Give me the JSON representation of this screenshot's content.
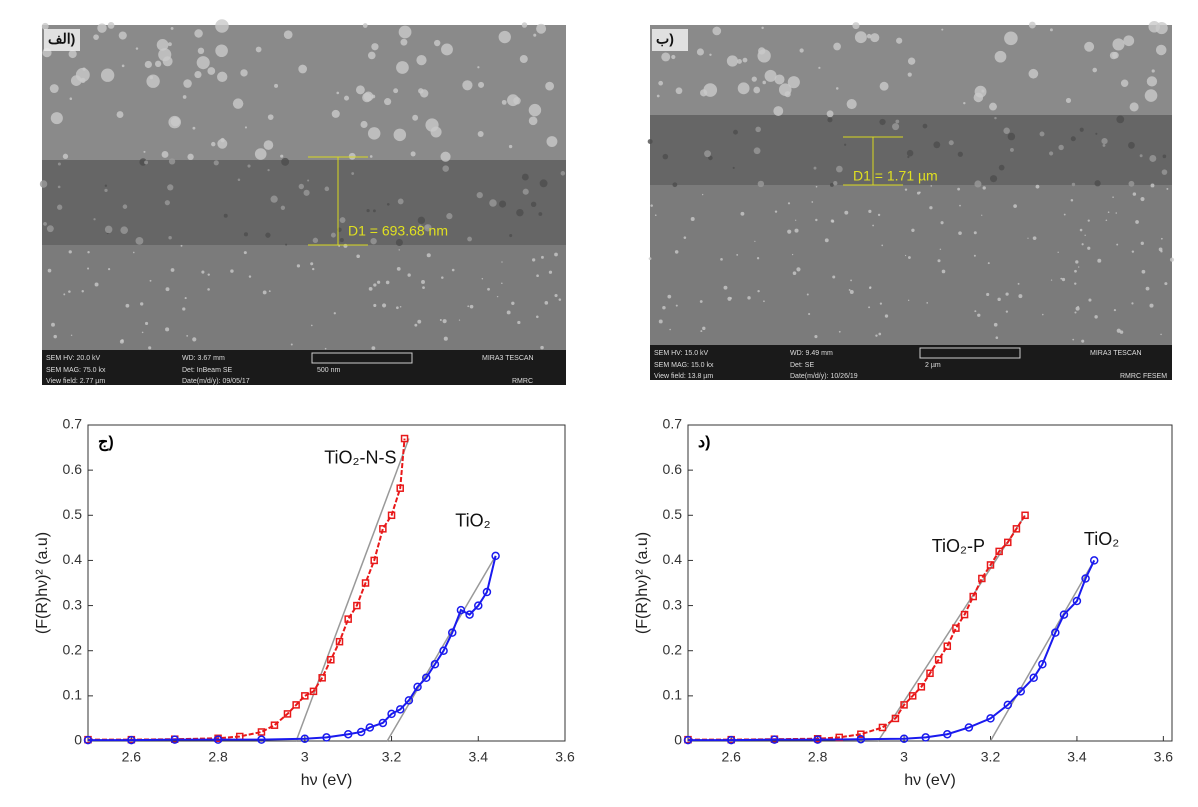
{
  "images": [
    {
      "label": "الف)",
      "measurement": "D1 = 693.68 nm",
      "info": [
        "SEM HV: 20.0 kV",
        "WD: 3.67 mm",
        "MIRA3 TESCAN",
        "SEM MAG: 75.0 kx",
        "Det: InBeam SE",
        "500 nm",
        "View field: 2.77 µm",
        "Date(m/d/y): 09/05/17",
        "RMRC"
      ]
    },
    {
      "label": "ب)",
      "measurement": "D1 = 1.71 µm",
      "info": [
        "SEM HV: 15.0 kV",
        "WD: 9.49 mm",
        "MIRA3 TESCAN",
        "SEM MAG: 15.0 kx",
        "Det: SE",
        "2 µm",
        "View field: 13.8 µm",
        "Date(m/d/y): 10/26/19",
        "RMRC  FESEM"
      ]
    }
  ],
  "chart_data": [
    {
      "type": "line",
      "panel_label": "ج)",
      "xlabel": "hν (eV)",
      "ylabel": "(F(R)hν)² (a.u)",
      "xlim": [
        2.5,
        3.6
      ],
      "ylim": [
        0,
        0.7
      ],
      "xticks": [
        2.6,
        2.8,
        3,
        3.2,
        3.4,
        3.6
      ],
      "yticks": [
        0,
        0.1,
        0.2,
        0.3,
        0.4,
        0.5,
        0.6,
        0.7
      ],
      "series": [
        {
          "name": "TiO₂-N-S",
          "color": "#e8191a",
          "x": [
            2.5,
            2.6,
            2.7,
            2.8,
            2.85,
            2.9,
            2.93,
            2.96,
            2.98,
            3.0,
            3.02,
            3.04,
            3.06,
            3.08,
            3.1,
            3.12,
            3.14,
            3.16,
            3.18,
            3.2,
            3.22,
            3.23
          ],
          "values": [
            0.003,
            0.003,
            0.004,
            0.006,
            0.01,
            0.02,
            0.035,
            0.06,
            0.08,
            0.1,
            0.11,
            0.14,
            0.18,
            0.22,
            0.27,
            0.3,
            0.35,
            0.4,
            0.47,
            0.5,
            0.56,
            0.67
          ]
        },
        {
          "name": "TiO₂",
          "color": "#1a1aee",
          "x": [
            2.5,
            2.6,
            2.7,
            2.8,
            2.9,
            3.0,
            3.05,
            3.1,
            3.13,
            3.15,
            3.18,
            3.2,
            3.22,
            3.24,
            3.26,
            3.28,
            3.3,
            3.32,
            3.34,
            3.36,
            3.38,
            3.4,
            3.42,
            3.44
          ],
          "values": [
            0.002,
            0.002,
            0.003,
            0.003,
            0.003,
            0.005,
            0.008,
            0.015,
            0.02,
            0.03,
            0.04,
            0.06,
            0.07,
            0.09,
            0.12,
            0.14,
            0.17,
            0.2,
            0.24,
            0.29,
            0.28,
            0.3,
            0.33,
            0.41
          ]
        }
      ],
      "fit_lines": [
        {
          "color": "#999999",
          "x": [
            2.98,
            3.24
          ],
          "values": [
            0,
            0.67
          ]
        },
        {
          "color": "#999999",
          "x": [
            3.19,
            3.44
          ],
          "values": [
            0,
            0.41
          ]
        }
      ]
    },
    {
      "type": "line",
      "panel_label": "د)",
      "xlabel": "hν (eV)",
      "ylabel": "(F(R)hν)² (a.u)",
      "xlim": [
        2.5,
        3.62
      ],
      "ylim": [
        0,
        0.7
      ],
      "xticks": [
        2.6,
        2.8,
        3,
        3.2,
        3.4,
        3.6
      ],
      "yticks": [
        0,
        0.1,
        0.2,
        0.3,
        0.4,
        0.5,
        0.6,
        0.7
      ],
      "series": [
        {
          "name": "TiO₂-P",
          "color": "#e8191a",
          "x": [
            2.5,
            2.6,
            2.7,
            2.8,
            2.85,
            2.9,
            2.95,
            2.98,
            3.0,
            3.02,
            3.04,
            3.06,
            3.08,
            3.1,
            3.12,
            3.14,
            3.16,
            3.18,
            3.2,
            3.22,
            3.24,
            3.26,
            3.28
          ],
          "values": [
            0.003,
            0.003,
            0.004,
            0.005,
            0.008,
            0.015,
            0.03,
            0.05,
            0.08,
            0.1,
            0.12,
            0.15,
            0.18,
            0.21,
            0.25,
            0.28,
            0.32,
            0.36,
            0.39,
            0.42,
            0.44,
            0.47,
            0.5
          ]
        },
        {
          "name": "TiO₂",
          "color": "#1a1aee",
          "x": [
            2.5,
            2.6,
            2.7,
            2.8,
            2.9,
            3.0,
            3.05,
            3.1,
            3.15,
            3.2,
            3.24,
            3.27,
            3.3,
            3.32,
            3.35,
            3.37,
            3.4,
            3.42,
            3.44
          ],
          "values": [
            0.002,
            0.002,
            0.003,
            0.003,
            0.004,
            0.005,
            0.008,
            0.015,
            0.03,
            0.05,
            0.08,
            0.11,
            0.14,
            0.17,
            0.24,
            0.28,
            0.31,
            0.36,
            0.4
          ]
        }
      ],
      "fit_lines": [
        {
          "color": "#999999",
          "x": [
            2.94,
            3.28
          ],
          "values": [
            0,
            0.5
          ]
        },
        {
          "color": "#999999",
          "x": [
            3.2,
            3.44
          ],
          "values": [
            0,
            0.4
          ]
        }
      ]
    }
  ]
}
